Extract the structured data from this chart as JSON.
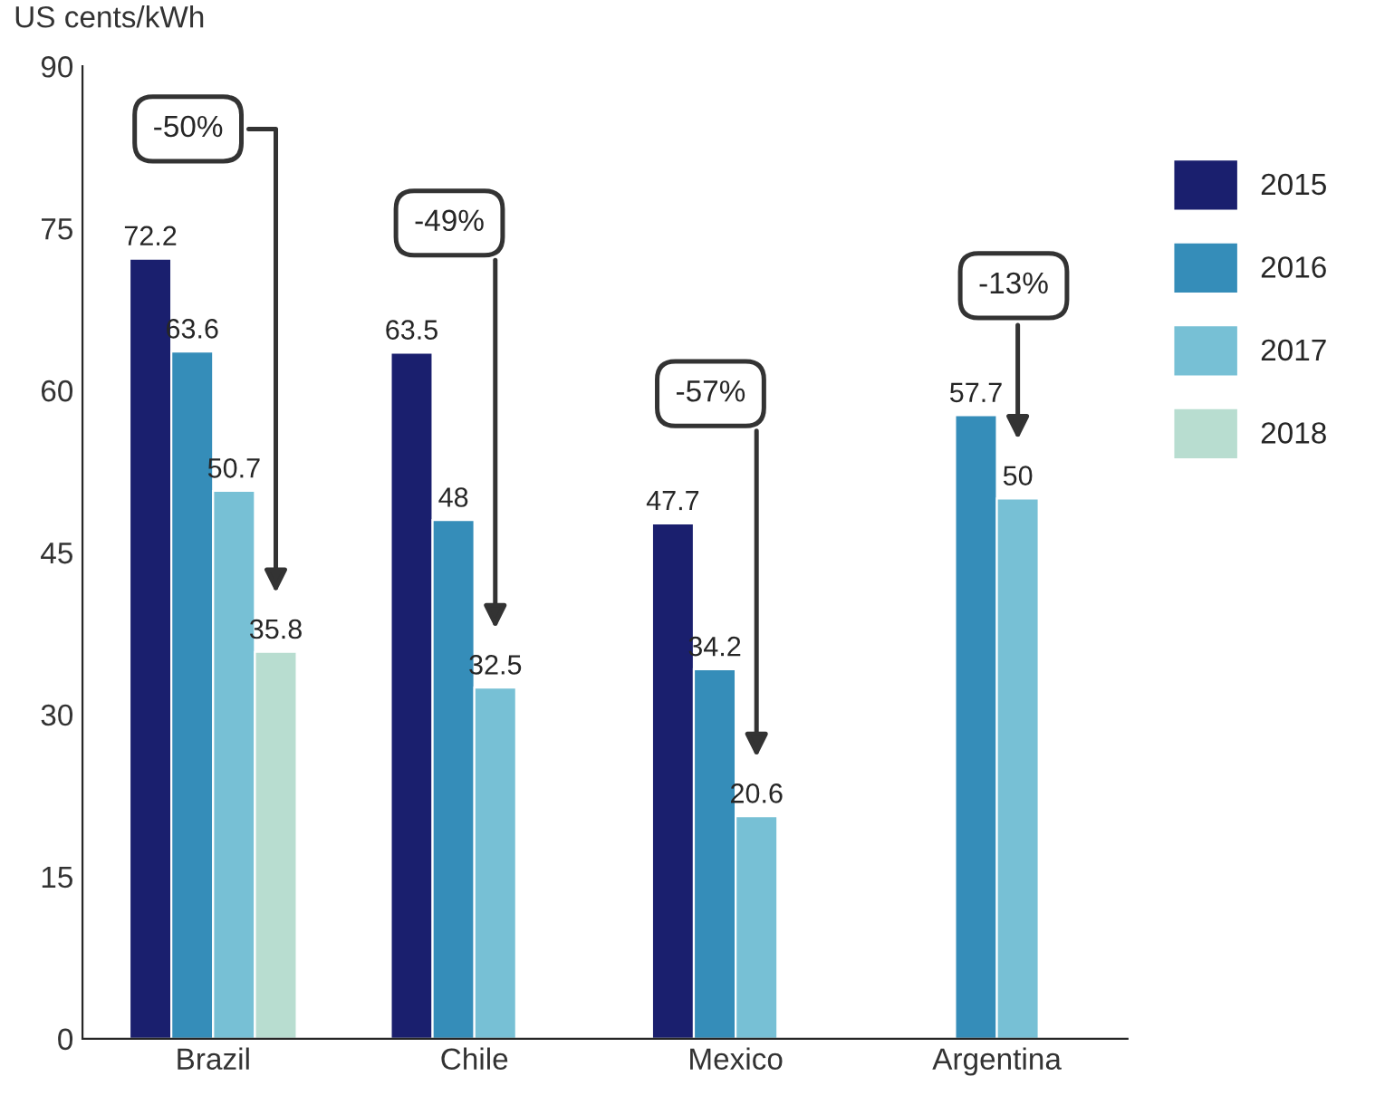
{
  "chart_data": {
    "type": "bar",
    "ylabel": "US cents/kWh",
    "categories": [
      "Brazil",
      "Chile",
      "Mexico",
      "Argentina"
    ],
    "series": [
      {
        "name": "2015",
        "color": "#1a1f6e",
        "values": [
          72.2,
          63.5,
          47.7,
          null
        ]
      },
      {
        "name": "2016",
        "color": "#358db9",
        "values": [
          63.6,
          48,
          34.2,
          57.7
        ]
      },
      {
        "name": "2017",
        "color": "#77c0d5",
        "values": [
          50.7,
          32.5,
          20.6,
          50
        ]
      },
      {
        "name": "2018",
        "color": "#b8ddd0",
        "values": [
          35.8,
          null,
          null,
          null
        ]
      }
    ],
    "ylim": [
      0,
      90
    ],
    "yticks": [
      0,
      15,
      30,
      45,
      60,
      75,
      90
    ],
    "annotations": [
      "-50%",
      "-49%",
      "-57%",
      "-13%"
    ],
    "data_labels": true,
    "grid": false,
    "legend": "right"
  }
}
